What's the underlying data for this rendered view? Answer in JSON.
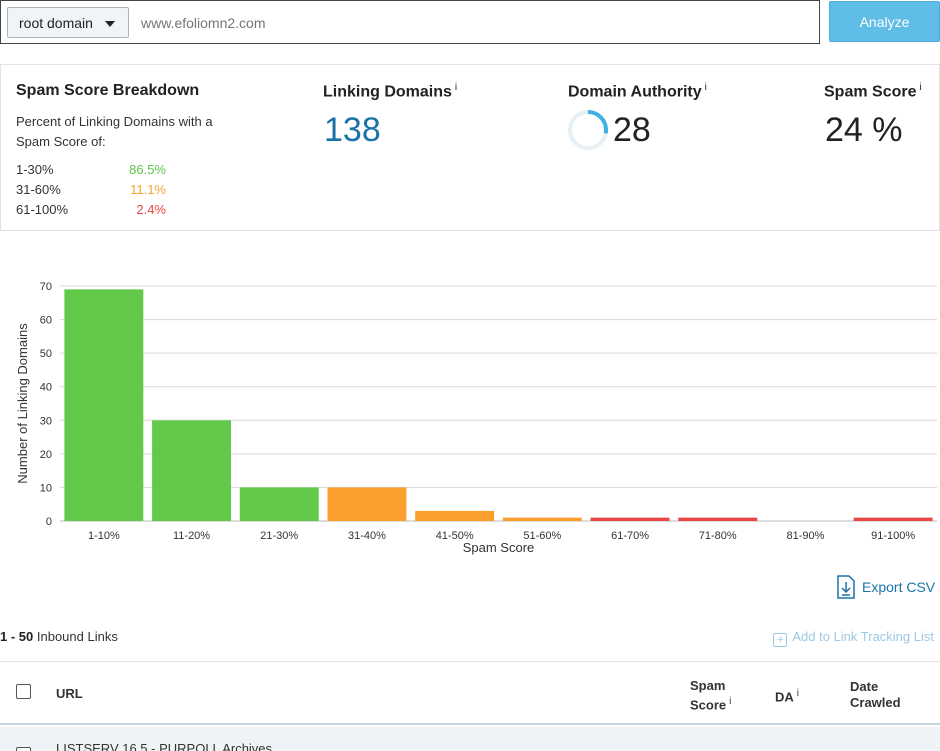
{
  "search": {
    "scope_value": "root domain",
    "query_placeholder": "www.efoliomn2.com",
    "analyze_label": "Analyze"
  },
  "breakdown": {
    "title": "Spam Score Breakdown",
    "subtitle": "Percent of Linking Domains with a Spam Score of:",
    "rows": [
      {
        "label": "1-30%",
        "value": "86.5%",
        "color": "#5cc54a"
      },
      {
        "label": "31-60%",
        "value": "11.1%",
        "color": "#f5a42d"
      },
      {
        "label": "61-100%",
        "value": "2.4%",
        "color": "#e8473f"
      }
    ]
  },
  "metrics": {
    "linking_domains": {
      "title": "Linking Domains",
      "info": "i",
      "value": "138"
    },
    "domain_authority": {
      "title": "Domain Authority",
      "info": "i",
      "value": "28",
      "fraction": 0.28
    },
    "spam_score": {
      "title": "Spam Score",
      "info": "i",
      "value": "24 %"
    }
  },
  "chart_data": {
    "type": "bar",
    "xlabel": "Spam Score",
    "ylabel": "Number of Linking Domains",
    "ylim": [
      0,
      70
    ],
    "yticks": [
      0,
      10,
      20,
      30,
      40,
      50,
      60,
      70
    ],
    "grid": true,
    "categories": [
      "1-10%",
      "11-20%",
      "21-30%",
      "31-40%",
      "41-50%",
      "51-60%",
      "61-70%",
      "71-80%",
      "81-90%",
      "91-100%"
    ],
    "values": [
      69,
      30,
      10,
      10,
      3,
      1,
      1,
      1,
      0,
      1
    ],
    "colors": [
      "#62c94b",
      "#62c94b",
      "#62c94b",
      "#fa9f2e",
      "#fa9f2e",
      "#fa9f2e",
      "#ea4646",
      "#ea4646",
      "#ea4646",
      "#ea4646"
    ]
  },
  "export": {
    "label": "Export CSV",
    "icon": "download-file-icon"
  },
  "links": {
    "range": "1 - 50",
    "label": "Inbound Links",
    "add_tracking_label": "Add to Link Tracking List"
  },
  "table": {
    "columns": {
      "url": "URL",
      "spam_score_line1": "Spam",
      "spam_score_line2": "Score",
      "spam_info": "i",
      "da": "DA",
      "da_info": "i",
      "date_line1": "Date",
      "date_line2": "Crawled"
    },
    "rows": [
      {
        "title": "LISTSERV 16.5 - PURPOLL Archives"
      }
    ]
  }
}
